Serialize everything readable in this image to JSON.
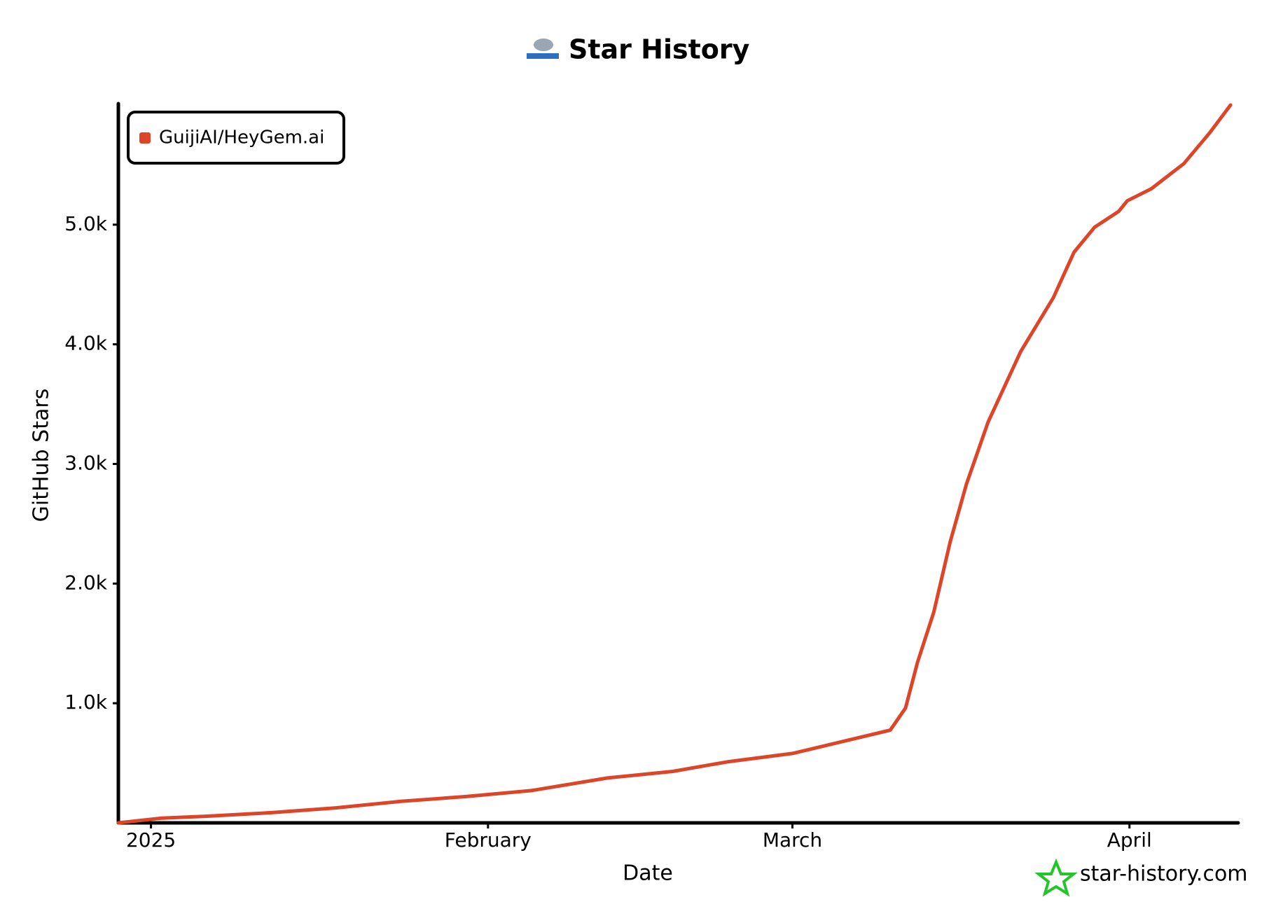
{
  "chart_data": {
    "type": "line",
    "title": "Star History",
    "xlabel": "Date",
    "ylabel": "GitHub Stars",
    "watermark": "star-history.com",
    "legend": "top-left",
    "xlim": [
      -3,
      100
    ],
    "xticks": [
      {
        "value": 0,
        "label": "2025"
      },
      {
        "value": 31,
        "label": "February"
      },
      {
        "value": 59,
        "label": "March"
      },
      {
        "value": 90,
        "label": "April"
      }
    ],
    "ylim": [
      0,
      6000
    ],
    "yticks": [
      {
        "value": 1000,
        "label": "1.0k"
      },
      {
        "value": 2000,
        "label": "2.0k"
      },
      {
        "value": 3000,
        "label": "3.0k"
      },
      {
        "value": 4000,
        "label": "4.0k"
      },
      {
        "value": 5000,
        "label": "5.0k"
      }
    ],
    "x": [
      -3,
      1,
      5,
      11,
      17,
      23,
      29,
      35,
      42,
      48,
      53,
      59,
      65,
      68,
      69.4,
      70.5,
      72,
      73.5,
      75,
      77,
      80,
      83,
      84.9,
      86.8,
      89,
      89.8,
      92,
      95,
      97.4,
      99.3
    ],
    "series": [
      {
        "name": "GuijiAI/HeyGem.ai",
        "color": "#dd4528",
        "values": [
          0,
          40,
          55,
          85,
          125,
          180,
          220,
          270,
          375,
          430,
          510,
          580,
          710,
          775,
          960,
          1340,
          1760,
          2345,
          2830,
          3350,
          3940,
          4390,
          4770,
          4980,
          5110,
          5200,
          5300,
          5510,
          5770,
          6000
        ]
      }
    ]
  }
}
